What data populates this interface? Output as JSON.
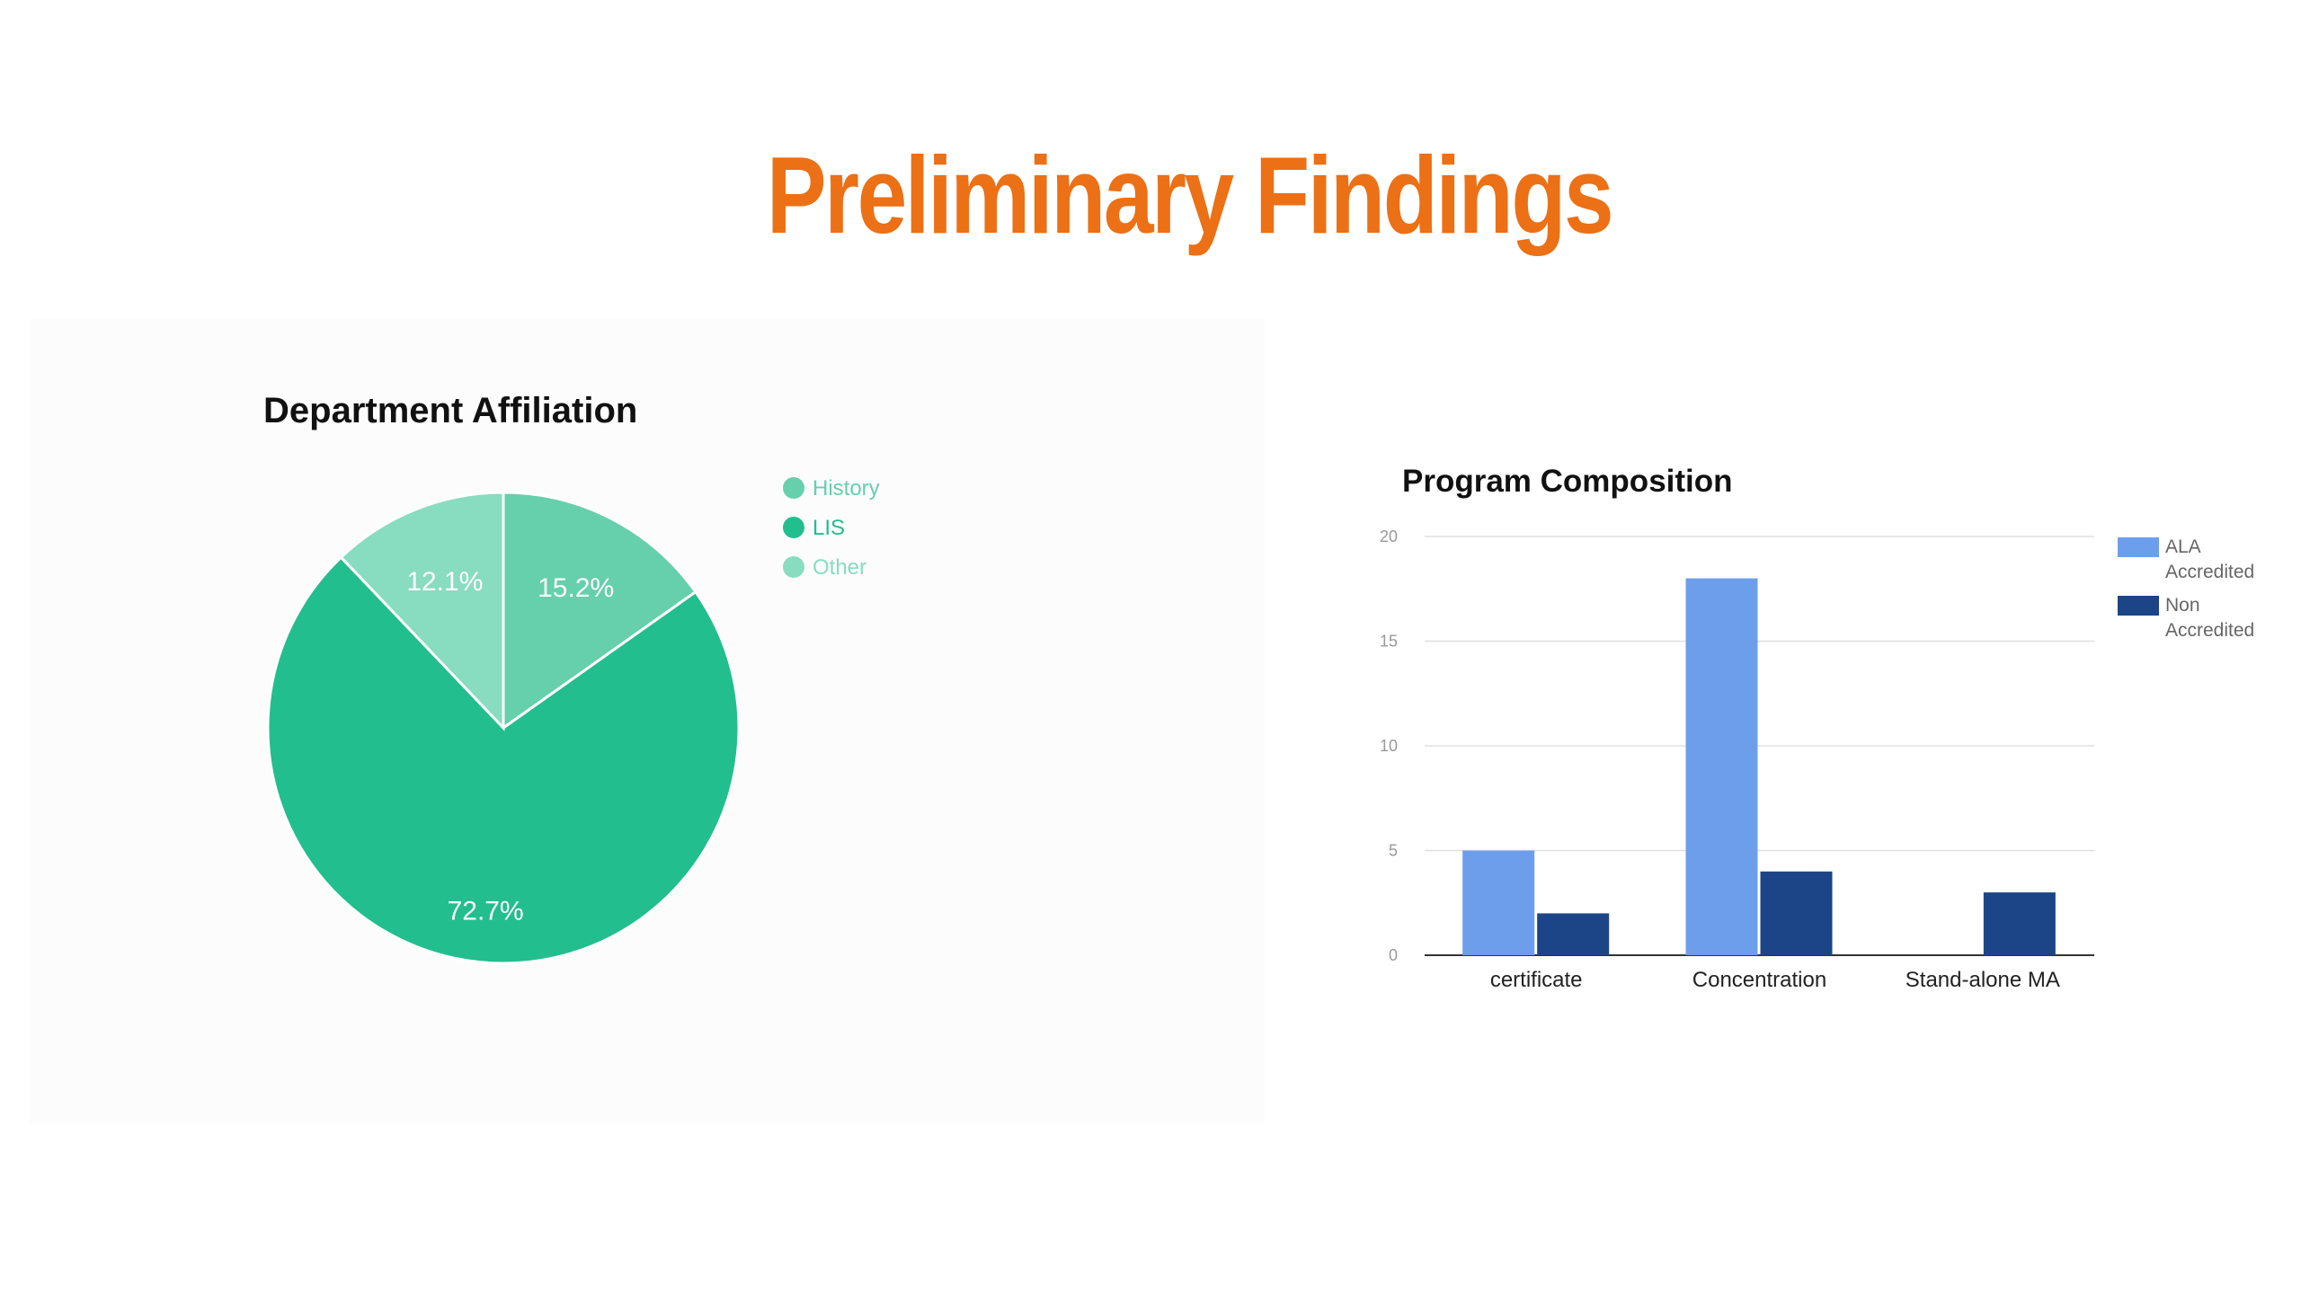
{
  "slide": {
    "title": "Preliminary Findings"
  },
  "colors": {
    "title": "#ec7015",
    "history": "#66cfac",
    "lis": "#22be8e",
    "other": "#88dcbf",
    "ala": "#6d9eeb",
    "non": "#1c4587"
  },
  "chart_data": [
    {
      "type": "pie",
      "title": "Department Affiliation",
      "slices": [
        {
          "label": "History",
          "value": 15.2,
          "display": "15.2%"
        },
        {
          "label": "LIS",
          "value": 72.7,
          "display": "72.7%"
        },
        {
          "label": "Other",
          "value": 12.1,
          "display": "12.1%"
        }
      ],
      "legend_position": "right"
    },
    {
      "type": "bar",
      "title": "Program Composition",
      "categories": [
        "certificate",
        "Concentration",
        "Stand-alone MA"
      ],
      "series": [
        {
          "name": "ALA Accredited",
          "legend_lines": [
            "ALA",
            "Accredited"
          ],
          "values": [
            5,
            18,
            0
          ]
        },
        {
          "name": "Non Accredited",
          "legend_lines": [
            "Non",
            "Accredited"
          ],
          "values": [
            2,
            4,
            3
          ]
        }
      ],
      "ylim": [
        0,
        20
      ],
      "yticks": [
        "0",
        "5",
        "10",
        "15",
        "20"
      ],
      "grid": true,
      "legend_position": "right"
    }
  ]
}
